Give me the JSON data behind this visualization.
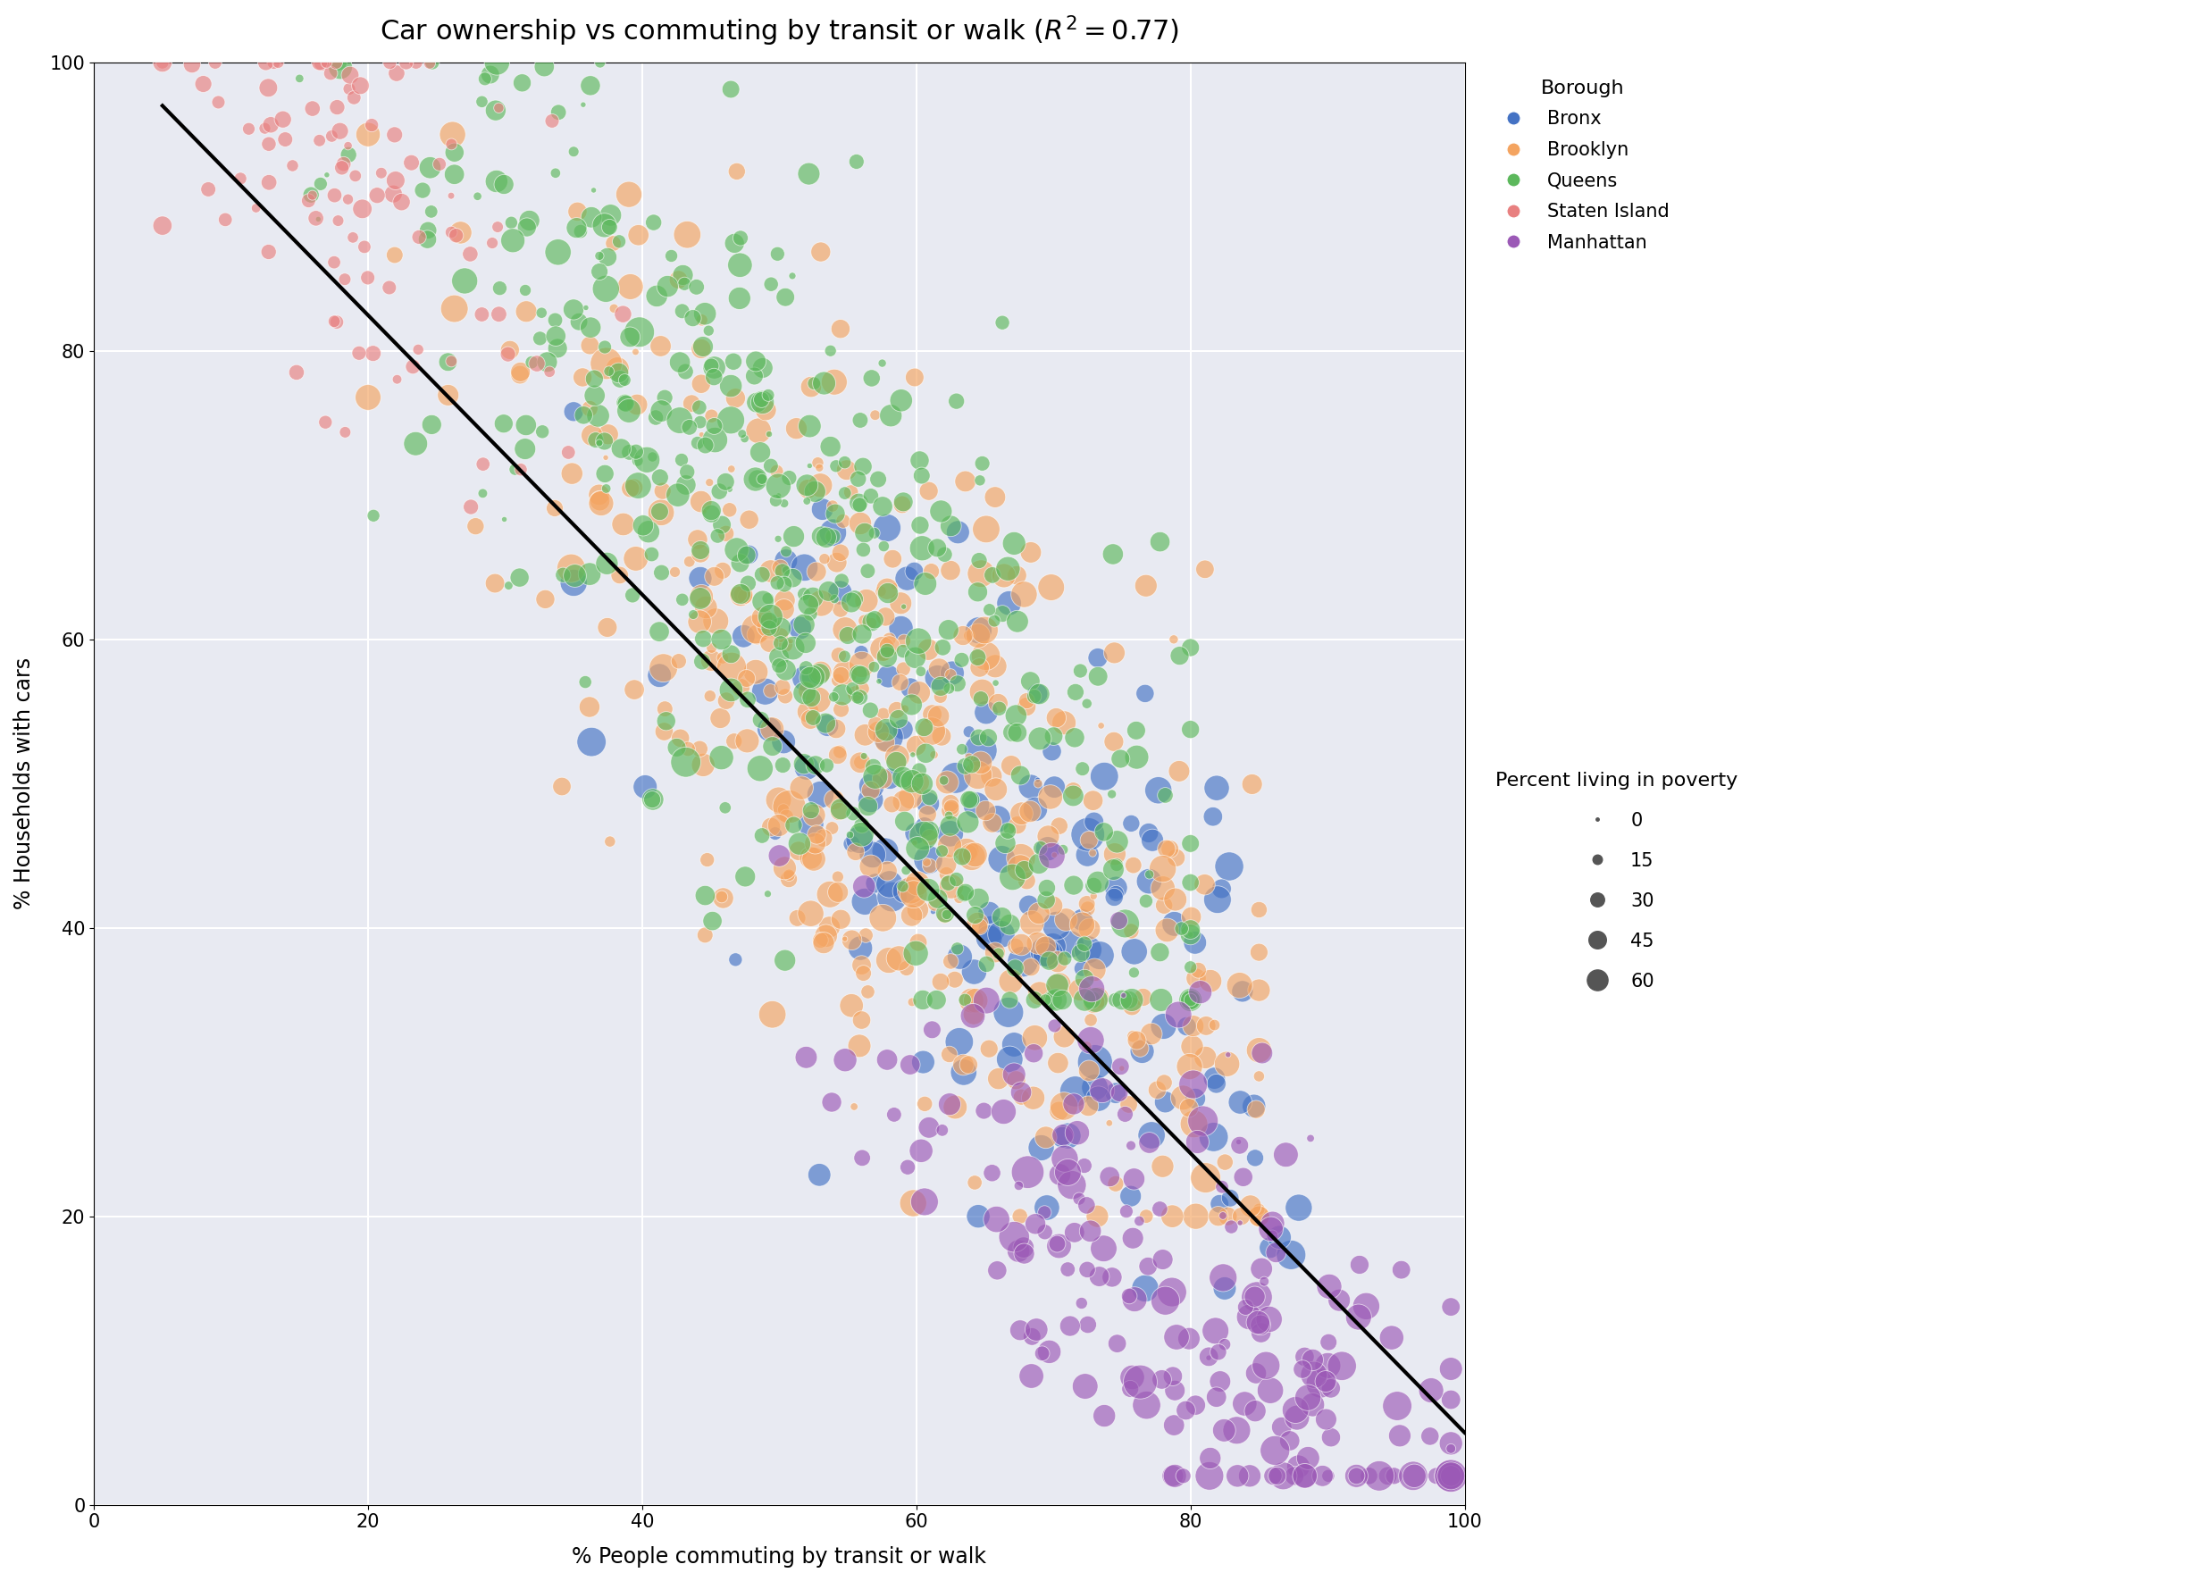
{
  "title": "Car ownership vs commuting by transit or walk ($R^2 = 0.77$)",
  "xlabel": "% People commuting by transit or walk",
  "ylabel": "% Households with cars",
  "xlim": [
    0,
    100
  ],
  "ylim": [
    0,
    100
  ],
  "xticks": [
    0,
    20,
    40,
    60,
    80,
    100
  ],
  "yticks": [
    0,
    20,
    40,
    60,
    80,
    100
  ],
  "background_color": "#e8eaf2",
  "grid_color": "white",
  "borough_colors": {
    "Bronx": "#4472c4",
    "Brooklyn": "#f4a460",
    "Queens": "#5cb85c",
    "Staten Island": "#e88080",
    "Manhattan": "#9b59b6"
  },
  "regression_line": {
    "x_start": 5,
    "y_start": 97,
    "x_end": 100,
    "y_end": 5,
    "color": "black",
    "linewidth": 3.0
  },
  "legend_sizes": [
    0,
    15,
    30,
    45,
    60
  ],
  "size_label": "Percent living in poverty",
  "borough_label": "Borough",
  "title_fontsize": 22,
  "axis_label_fontsize": 17,
  "tick_fontsize": 15,
  "legend_fontsize": 15
}
